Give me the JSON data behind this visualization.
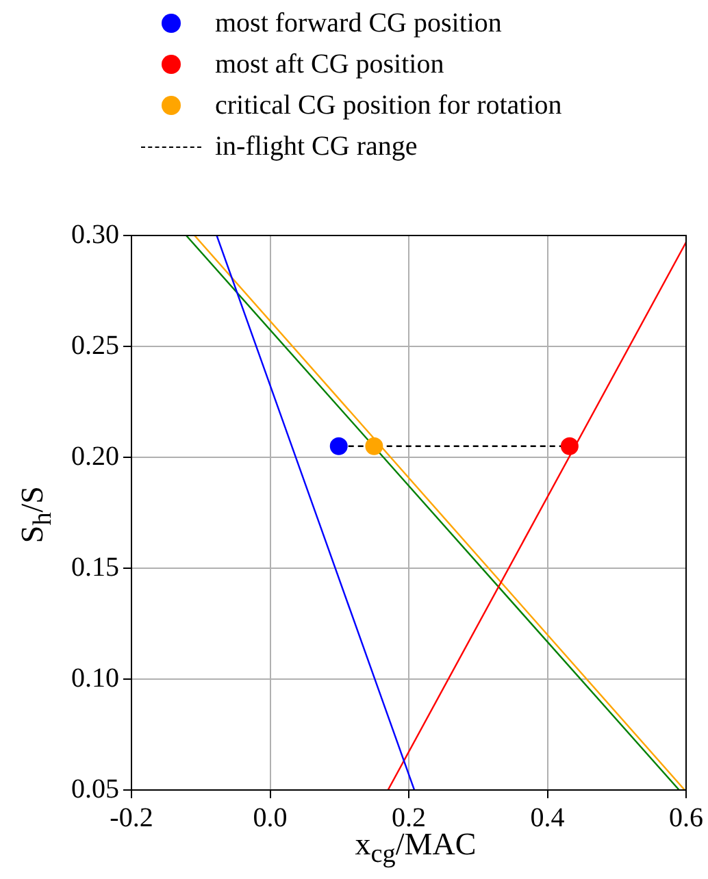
{
  "chart_data": {
    "type": "line",
    "xlabel": "x$_{cg}$/MAC",
    "ylabel": "S$_{h}$/S",
    "xlim": [
      -0.2,
      0.6
    ],
    "ylim": [
      0.05,
      0.3
    ],
    "xticks": [
      -0.2,
      {
        "value": 0,
        "label": "0.0"
      },
      0.2,
      0.4,
      0.6
    ],
    "yticks": [
      0.05,
      {
        "value": 0.1,
        "label": "0.10"
      },
      0.15,
      {
        "value": 0.2,
        "label": "0.20"
      },
      0.25,
      {
        "value": 0.3,
        "label": "0.30"
      }
    ],
    "grid": true,
    "legend": "top",
    "series": [
      {
        "color": "#0000ff",
        "marker": "none",
        "x": [
          -0.077,
          0.208
        ],
        "values": [
          0.3,
          0.05
        ]
      },
      {
        "color": "#ff0000",
        "marker": "none",
        "x": [
          0.17,
          0.6
        ],
        "values": [
          0.05,
          0.297
        ]
      },
      {
        "color": "#008000",
        "marker": "none",
        "x": [
          -0.121,
          0.59
        ],
        "values": [
          0.3,
          0.05
        ]
      },
      {
        "color": "#ffa500",
        "marker": "none",
        "x": [
          -0.109,
          0.598
        ],
        "values": [
          0.3,
          0.05
        ]
      },
      {
        "name": "in-flight CG range",
        "color": "#000000",
        "marker": "none",
        "line_style": "dashed",
        "x": [
          0.099,
          0.432
        ],
        "values": [
          0.205,
          0.205
        ]
      },
      {
        "type": "scatter",
        "marker": "circle",
        "name": "most forward CG position",
        "color": "#0000ff",
        "x": [
          0.099
        ],
        "values": [
          0.205
        ]
      },
      {
        "type": "scatter",
        "marker": "circle",
        "name": "most aft CG position",
        "color": "#ff0000",
        "x": [
          0.432
        ],
        "values": [
          0.205
        ]
      },
      {
        "type": "scatter",
        "marker": "circle",
        "name": "critical CG position for rotation",
        "color": "#ffa500",
        "x": [
          0.15
        ],
        "values": [
          0.205
        ]
      }
    ]
  }
}
